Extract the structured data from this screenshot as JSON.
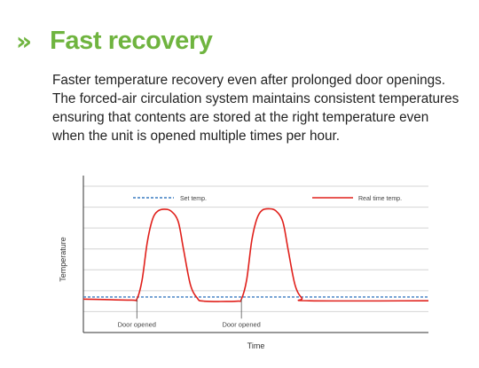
{
  "section": {
    "chevron": "»",
    "title": "Fast recovery",
    "description_lines": [
      "Faster temperature recovery even after prolonged door openings.",
      "The forced-air circulation system maintains consistent temperatures",
      "ensuring that contents are stored at the right temperature even",
      "when the unit is opened multiple times per hour."
    ]
  },
  "colors": {
    "accent": "#6fb43f",
    "set_line": "#3a7cc1",
    "real_line": "#e0201b",
    "grid": "#d4d4d4",
    "axis": "#333333"
  },
  "chart_data": {
    "type": "line",
    "title": "",
    "xlabel": "Time",
    "ylabel": "Temperature",
    "xlim": [
      0,
      100
    ],
    "ylim": [
      0,
      7
    ],
    "grid": true,
    "legend_position": "top",
    "series": [
      {
        "name": "Set temp.",
        "style": "dashed",
        "points": [
          [
            0,
            1.7
          ],
          [
            100,
            1.7
          ]
        ]
      },
      {
        "name": "Real time temp.",
        "style": "solid",
        "points": [
          [
            0,
            1.6
          ],
          [
            14,
            1.55
          ],
          [
            15.5,
            1.6
          ],
          [
            17,
            2.5
          ],
          [
            18.5,
            4.3
          ],
          [
            20,
            5.4
          ],
          [
            21.5,
            5.8
          ],
          [
            23.5,
            5.9
          ],
          [
            25.5,
            5.8
          ],
          [
            27.5,
            5.3
          ],
          [
            29,
            4.0
          ],
          [
            31,
            2.3
          ],
          [
            33,
            1.65
          ],
          [
            35,
            1.5
          ],
          [
            44.5,
            1.5
          ],
          [
            45.8,
            1.6
          ],
          [
            47.3,
            2.5
          ],
          [
            48.8,
            4.4
          ],
          [
            50.3,
            5.45
          ],
          [
            51.8,
            5.85
          ],
          [
            53.8,
            5.92
          ],
          [
            55.8,
            5.82
          ],
          [
            57.8,
            5.3
          ],
          [
            59.3,
            4.0
          ],
          [
            61.3,
            2.3
          ],
          [
            63.3,
            1.65
          ],
          [
            65.5,
            1.52
          ],
          [
            100,
            1.52
          ]
        ]
      }
    ],
    "annotations": [
      {
        "label": "Door opened",
        "x": 15.5
      },
      {
        "label": "Door opened",
        "x": 45.8
      }
    ]
  }
}
